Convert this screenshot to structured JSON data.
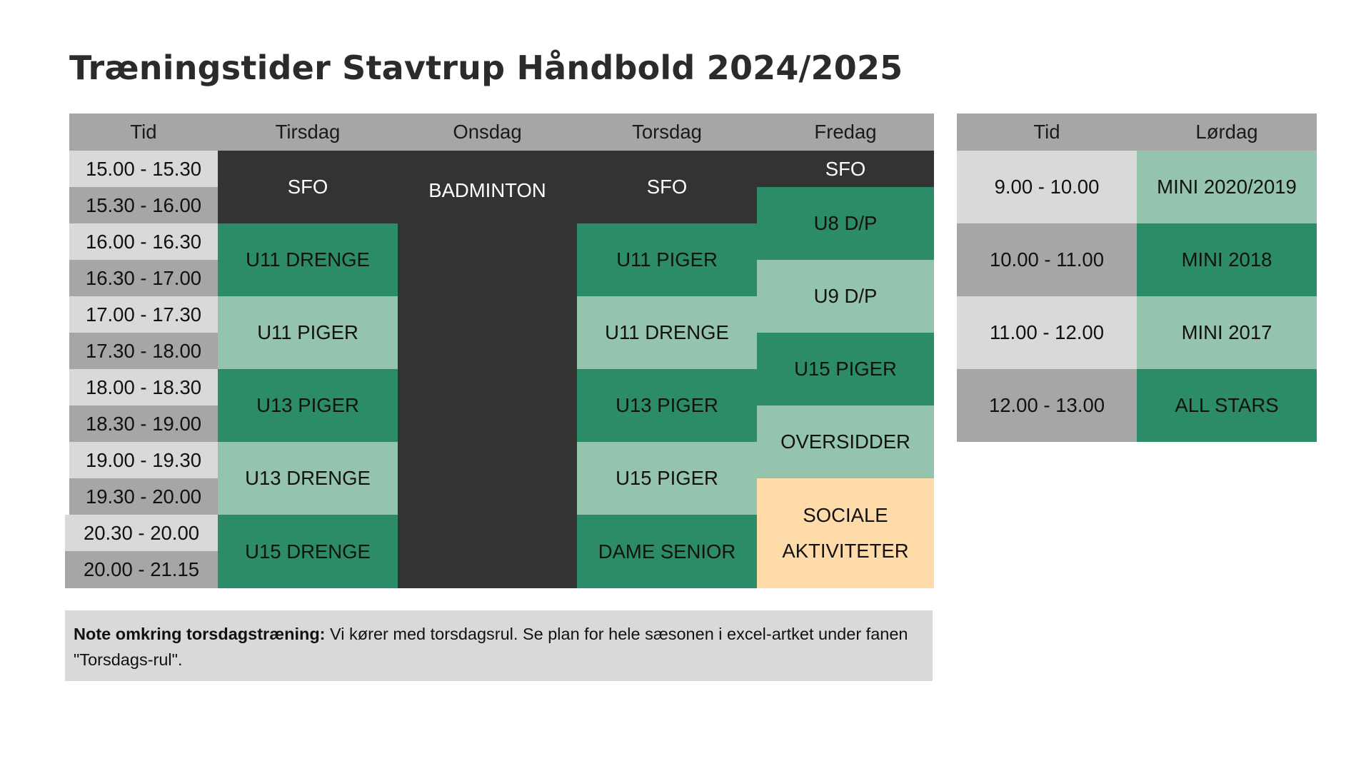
{
  "title": "Træningstider Stavtrup Håndbold 2024/2025",
  "main_table": {
    "headers": [
      "Tid",
      "Tirsdag",
      "Onsdag",
      "Torsdag",
      "Fredag"
    ],
    "times": [
      "15.00 - 15.30",
      "15.30 - 16.00",
      "16.00 - 16.30",
      "16.30 - 17.00",
      "17.00 - 17.30",
      "17.30 - 18.00",
      "18.00 - 18.30",
      "18.30 - 19.00",
      "19.00 - 19.30",
      "19.30 - 20.00",
      "20.30 - 20.00",
      "20.00 - 21.15"
    ],
    "tirsdag": [
      "SFO",
      "U11 DRENGE",
      "U11 PIGER",
      "U13 PIGER",
      "U13 DRENGE",
      "U15 DRENGE"
    ],
    "onsdag": [
      "BADMINTON"
    ],
    "torsdag": [
      "SFO",
      "U11 PIGER",
      "U11 DRENGE",
      "U13 PIGER",
      "U15 PIGER",
      "DAME SENIOR"
    ],
    "fredag": [
      "SFO",
      "U8 D/P",
      "U9 D/P",
      "U15 PIGER",
      "OVERSIDDER",
      "SOCIALE",
      "AKTIVITETER"
    ]
  },
  "saturday_table": {
    "headers": [
      "Tid",
      "Lørdag"
    ],
    "times": [
      "9.00 - 10.00",
      "10.00 - 11.00",
      "11.00 - 12.00",
      "12.00 - 13.00"
    ],
    "teams": [
      "MINI 2020/2019",
      "MINI 2018",
      "MINI 2017",
      "ALL STARS"
    ]
  },
  "note": {
    "bold": "Note omkring torsdagstræning:",
    "text": " Vi kører med torsdagsrul. Se plan for hele sæsonen i excel-artket under fanen \"Torsdags-rul\"."
  },
  "colors": {
    "header_gray": "#a6a6a6",
    "light_gray": "#d9d9d9",
    "dark": "#333333",
    "green_dark": "#2b8c67",
    "green_light": "#94c4ae",
    "peach": "#fedba9"
  }
}
